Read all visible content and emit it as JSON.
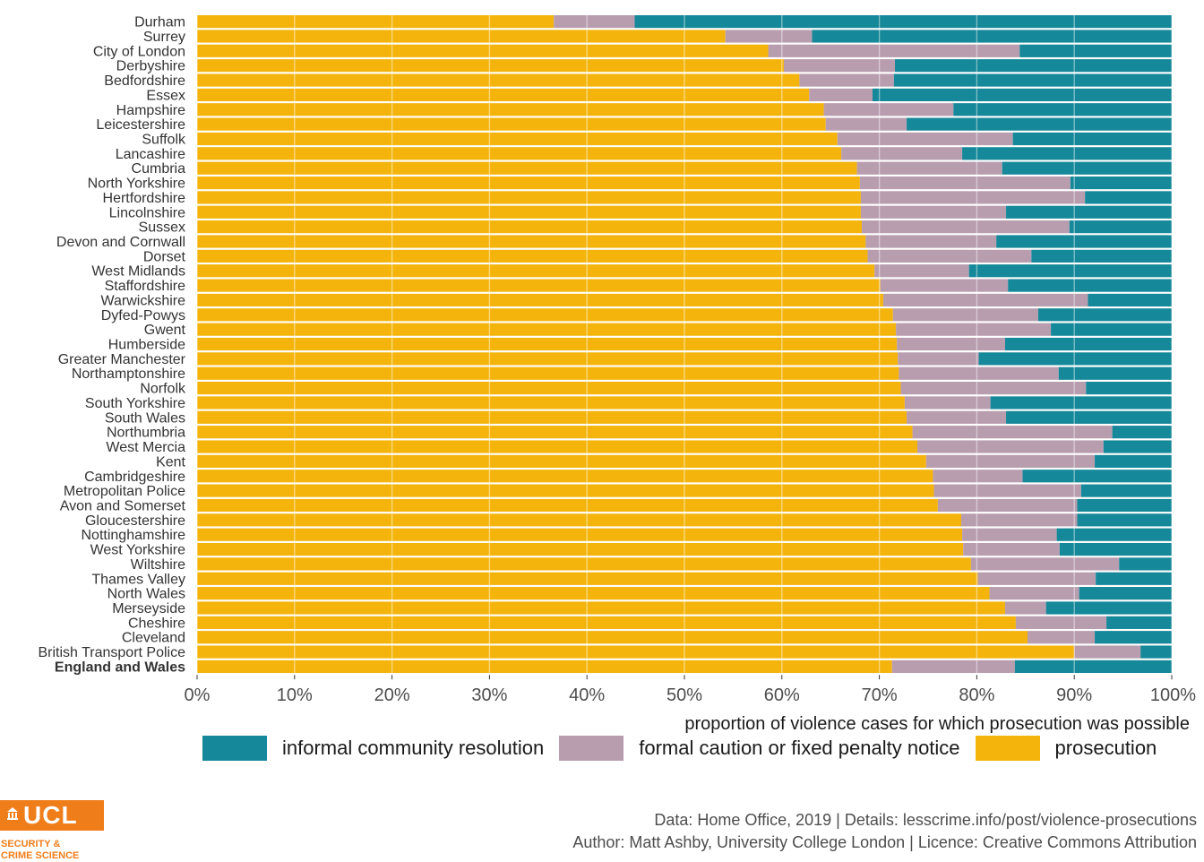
{
  "chart_data": {
    "type": "bar",
    "orientation": "horizontal",
    "stacked": true,
    "xlabel": "proportion of violence cases for which prosecution was possible",
    "xlim": [
      0,
      1
    ],
    "x_ticks": [
      "0%",
      "10%",
      "20%",
      "30%",
      "40%",
      "50%",
      "60%",
      "70%",
      "80%",
      "90%",
      "100%"
    ],
    "legend_position": "bottom",
    "grid": true,
    "highlight_category": "England and Wales",
    "categories": [
      "Durham",
      "Surrey",
      "City of London",
      "Derbyshire",
      "Bedfordshire",
      "Essex",
      "Hampshire",
      "Leicestershire",
      "Suffolk",
      "Lancashire",
      "Cumbria",
      "North Yorkshire",
      "Hertfordshire",
      "Lincolnshire",
      "Sussex",
      "Devon and Cornwall",
      "Dorset",
      "West Midlands",
      "Staffordshire",
      "Warwickshire",
      "Dyfed-Powys",
      "Gwent",
      "Humberside",
      "Greater Manchester",
      "Northamptonshire",
      "Norfolk",
      "South Yorkshire",
      "South Wales",
      "Northumbria",
      "West Mercia",
      "Kent",
      "Cambridgeshire",
      "Metropolitan Police",
      "Avon and Somerset",
      "Gloucestershire",
      "Nottinghamshire",
      "West Yorkshire",
      "Wiltshire",
      "Thames Valley",
      "North Wales",
      "Merseyside",
      "Cheshire",
      "Cleveland",
      "British Transport Police",
      "England and Wales"
    ],
    "series": [
      {
        "name": "prosecution",
        "color": "#f4b40c",
        "values": [
          0.366,
          0.542,
          0.586,
          0.602,
          0.618,
          0.628,
          0.643,
          0.645,
          0.657,
          0.661,
          0.677,
          0.68,
          0.681,
          0.681,
          0.682,
          0.686,
          0.688,
          0.695,
          0.701,
          0.704,
          0.714,
          0.717,
          0.718,
          0.719,
          0.72,
          0.722,
          0.726,
          0.728,
          0.734,
          0.739,
          0.748,
          0.755,
          0.756,
          0.76,
          0.784,
          0.785,
          0.786,
          0.794,
          0.801,
          0.813,
          0.829,
          0.84,
          0.852,
          0.9,
          0.713
        ]
      },
      {
        "name": "formal caution or fixed penalty notice",
        "color": "#b89daf",
        "values": [
          0.083,
          0.089,
          0.258,
          0.114,
          0.097,
          0.065,
          0.133,
          0.083,
          0.18,
          0.124,
          0.149,
          0.216,
          0.23,
          0.149,
          0.213,
          0.134,
          0.168,
          0.097,
          0.131,
          0.21,
          0.149,
          0.159,
          0.111,
          0.083,
          0.164,
          0.19,
          0.088,
          0.102,
          0.205,
          0.191,
          0.173,
          0.092,
          0.151,
          0.143,
          0.119,
          0.097,
          0.099,
          0.152,
          0.121,
          0.092,
          0.042,
          0.093,
          0.069,
          0.068,
          0.126
        ]
      },
      {
        "name": "informal community resolution",
        "color": "#158899",
        "values": [
          0.551,
          0.369,
          0.156,
          0.284,
          0.285,
          0.307,
          0.224,
          0.272,
          0.163,
          0.215,
          0.174,
          0.104,
          0.089,
          0.17,
          0.105,
          0.18,
          0.144,
          0.208,
          0.168,
          0.086,
          0.137,
          0.124,
          0.171,
          0.198,
          0.116,
          0.088,
          0.186,
          0.17,
          0.061,
          0.07,
          0.079,
          0.153,
          0.093,
          0.097,
          0.097,
          0.118,
          0.115,
          0.054,
          0.078,
          0.095,
          0.129,
          0.067,
          0.079,
          0.032,
          0.161
        ]
      }
    ]
  },
  "legend": {
    "items": [
      {
        "label": "informal community resolution",
        "color": "#158899"
      },
      {
        "label": "formal caution or fixed penalty notice",
        "color": "#b89daf"
      },
      {
        "label": "prosecution",
        "color": "#f4b40c"
      }
    ]
  },
  "caption": {
    "line1": "Data: Home Office, 2019 |  Details: lesscrime.info/post/violence-prosecutions",
    "line2": "Author: Matt Ashby, University College London |  Licence: Creative Commons Attribution"
  },
  "logo": {
    "name": "UCL",
    "sub_line1": "SECURITY &",
    "sub_line2": "CRIME SCIENCE",
    "color": "#ef7d1a"
  }
}
